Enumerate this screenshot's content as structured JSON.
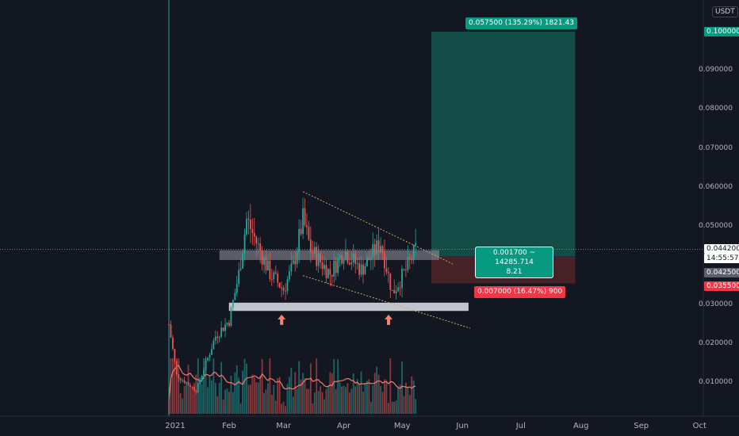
{
  "quote_currency": "USDT",
  "colors": {
    "background": "#131722",
    "up": "#26a69a",
    "down": "#ef5350",
    "target_zone": "#134e4a",
    "stop_zone": "#4a2329",
    "zone_band": "#9598a1",
    "volume_ma": "#ef7b6e",
    "arrow": "#f4866c",
    "trendline": "#c9a96a",
    "vline": "#26a69a"
  },
  "price_axis": {
    "ticks": [
      "0.100000",
      "0.090000",
      "0.080000",
      "0.070000",
      "0.060000",
      "0.050000",
      "0.044200",
      "0.042500",
      "0.035500",
      "0.030000",
      "0.020000",
      "0.010000"
    ],
    "current_price": "0.044200",
    "countdown": "14:55:57",
    "entry_price": "0.042500",
    "stop_price": "0.035500",
    "target_price": "0.100000"
  },
  "time_axis": {
    "labels": [
      "2021",
      "Feb",
      "Mar",
      "Apr",
      "May",
      "Jun",
      "Jul",
      "Aug",
      "Sep",
      "Oct"
    ]
  },
  "position": {
    "target_label": "0.057500 (135.29%) 1821.43",
    "stop_label": "0.007000 (16.47%) 900",
    "center_line1": "0.001700 ~ 14285.714",
    "center_line2": "8.21"
  },
  "chart_data": {
    "type": "candlestick",
    "symbol_quote": "USDT",
    "ylim": [
      0,
      0.105
    ],
    "ohlc_anchor_points": [
      {
        "date": "2021-01-01",
        "close": 0.025
      },
      {
        "date": "2021-01-05",
        "close": 0.012
      },
      {
        "date": "2021-01-15",
        "close": 0.008
      },
      {
        "date": "2021-01-25",
        "close": 0.022
      },
      {
        "date": "2021-02-01",
        "close": 0.026
      },
      {
        "date": "2021-02-06",
        "close": 0.038
      },
      {
        "date": "2021-02-10",
        "close": 0.052
      },
      {
        "date": "2021-02-15",
        "close": 0.046
      },
      {
        "date": "2021-02-22",
        "close": 0.038
      },
      {
        "date": "2021-03-01",
        "close": 0.034
      },
      {
        "date": "2021-03-06",
        "close": 0.04
      },
      {
        "date": "2021-03-11",
        "close": 0.052
      },
      {
        "date": "2021-03-15",
        "close": 0.044
      },
      {
        "date": "2021-03-25",
        "close": 0.038
      },
      {
        "date": "2021-04-01",
        "close": 0.044
      },
      {
        "date": "2021-04-10",
        "close": 0.039
      },
      {
        "date": "2021-04-20",
        "close": 0.046
      },
      {
        "date": "2021-04-26",
        "close": 0.033
      },
      {
        "date": "2021-05-03",
        "close": 0.039
      },
      {
        "date": "2021-05-08",
        "close": 0.0442
      }
    ],
    "support_zone": [
      0.0285,
      0.0305
    ],
    "resistance_zone": [
      0.0415,
      0.044
    ],
    "entry": 0.0425,
    "stop": 0.0355,
    "target": 0.1,
    "current": 0.0442,
    "risk_reward": "8.21"
  }
}
